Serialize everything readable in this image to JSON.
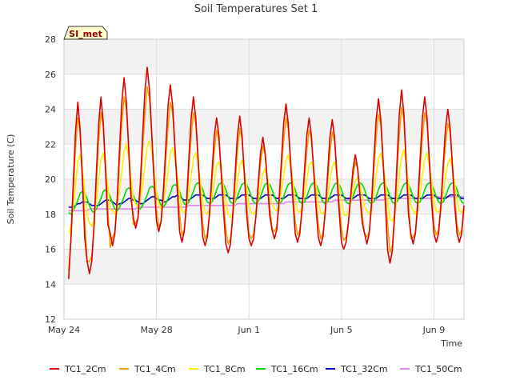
{
  "chart_data": {
    "type": "line",
    "title": "Soil Temperatures Set 1",
    "xlabel": "Time",
    "ylabel": "Soil Temperature (C)",
    "badge": "SI_met",
    "ylim": [
      12,
      28
    ],
    "yticks": [
      12,
      14,
      16,
      18,
      20,
      22,
      24,
      26,
      28
    ],
    "xlim": [
      0,
      17.3
    ],
    "xticks": [
      {
        "pos": 0,
        "label": "May 24"
      },
      {
        "pos": 4,
        "label": "May 28"
      },
      {
        "pos": 8,
        "label": "Jun 1"
      },
      {
        "pos": 12,
        "label": "Jun 5"
      },
      {
        "pos": 16,
        "label": "Jun 9"
      }
    ],
    "grid": true,
    "legend_position": "bottom",
    "x_note": "days since May 24 (samples every 0.1 day)",
    "series": [
      {
        "name": "TC1_2Cm",
        "color": "#dd0000",
        "values": []
      },
      {
        "name": "TC1_4Cm",
        "color": "#f0a000",
        "values": []
      },
      {
        "name": "TC1_8Cm",
        "color": "#ffee00",
        "values": []
      },
      {
        "name": "TC1_16Cm",
        "color": "#00dd00",
        "values": []
      },
      {
        "name": "TC1_32Cm",
        "color": "#0000cc",
        "values": []
      },
      {
        "name": "TC1_50Cm",
        "color": "#dd88ee",
        "values": []
      }
    ]
  }
}
